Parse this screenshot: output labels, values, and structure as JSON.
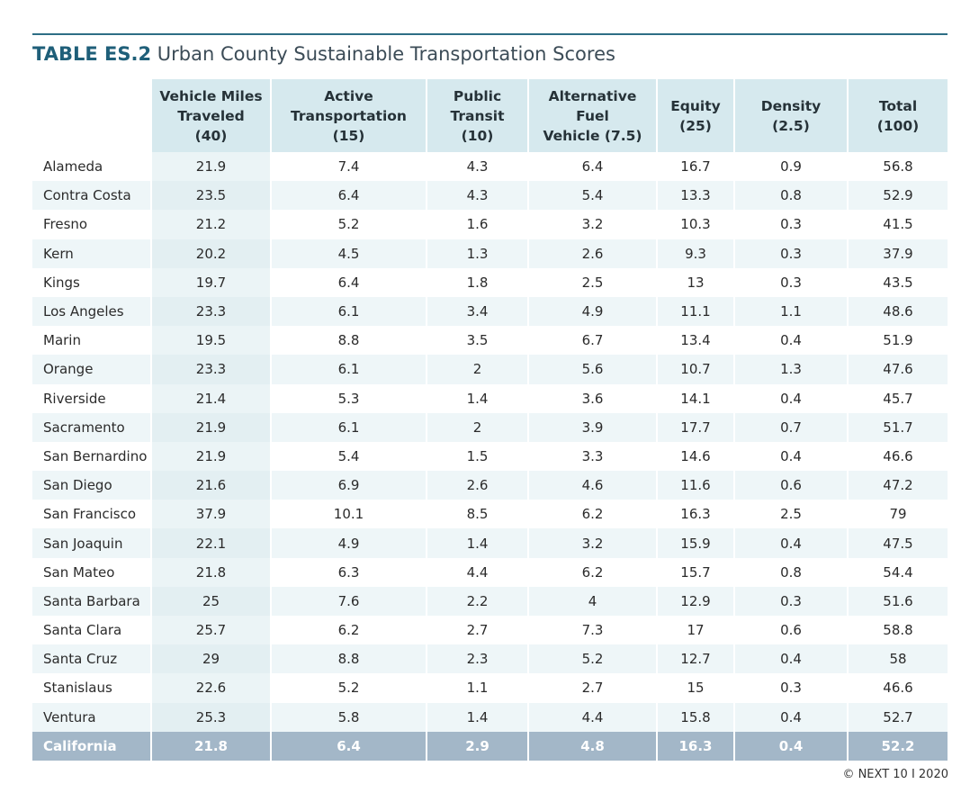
{
  "title": {
    "label": "TABLE ES.2",
    "text": "Urban County Sustainable Transportation Scores"
  },
  "table": {
    "headers": [
      [
        "Vehicle Miles",
        "Traveled",
        "(40)"
      ],
      [
        "Active",
        "Transportation",
        "(15)"
      ],
      [
        "Public",
        "Transit",
        "(10)"
      ],
      [
        "Alternative",
        "Fuel",
        "Vehicle (7.5)"
      ],
      [
        "Equity",
        "(25)"
      ],
      [
        "Density",
        "(2.5)"
      ],
      [
        "Total",
        "(100)"
      ]
    ],
    "rows": [
      {
        "county": "Alameda",
        "values": [
          "21.9",
          "7.4",
          "4.3",
          "6.4",
          "16.7",
          "0.9",
          "56.8"
        ]
      },
      {
        "county": "Contra Costa",
        "values": [
          "23.5",
          "6.4",
          "4.3",
          "5.4",
          "13.3",
          "0.8",
          "52.9"
        ]
      },
      {
        "county": "Fresno",
        "values": [
          "21.2",
          "5.2",
          "1.6",
          "3.2",
          "10.3",
          "0.3",
          "41.5"
        ]
      },
      {
        "county": "Kern",
        "values": [
          "20.2",
          "4.5",
          "1.3",
          "2.6",
          "9.3",
          "0.3",
          "37.9"
        ]
      },
      {
        "county": "Kings",
        "values": [
          "19.7",
          "6.4",
          "1.8",
          "2.5",
          "13",
          "0.3",
          "43.5"
        ]
      },
      {
        "county": "Los Angeles",
        "values": [
          "23.3",
          "6.1",
          "3.4",
          "4.9",
          "11.1",
          "1.1",
          "48.6"
        ]
      },
      {
        "county": "Marin",
        "values": [
          "19.5",
          "8.8",
          "3.5",
          "6.7",
          "13.4",
          "0.4",
          "51.9"
        ]
      },
      {
        "county": "Orange",
        "values": [
          "23.3",
          "6.1",
          "2",
          "5.6",
          "10.7",
          "1.3",
          "47.6"
        ]
      },
      {
        "county": "Riverside",
        "values": [
          "21.4",
          "5.3",
          "1.4",
          "3.6",
          "14.1",
          "0.4",
          "45.7"
        ]
      },
      {
        "county": "Sacramento",
        "values": [
          "21.9",
          "6.1",
          "2",
          "3.9",
          "17.7",
          "0.7",
          "51.7"
        ]
      },
      {
        "county": "San Bernardino",
        "values": [
          "21.9",
          "5.4",
          "1.5",
          "3.3",
          "14.6",
          "0.4",
          "46.6"
        ]
      },
      {
        "county": "San Diego",
        "values": [
          "21.6",
          "6.9",
          "2.6",
          "4.6",
          "11.6",
          "0.6",
          "47.2"
        ]
      },
      {
        "county": "San Francisco",
        "values": [
          "37.9",
          "10.1",
          "8.5",
          "6.2",
          "16.3",
          "2.5",
          "79"
        ]
      },
      {
        "county": "San Joaquin",
        "values": [
          "22.1",
          "4.9",
          "1.4",
          "3.2",
          "15.9",
          "0.4",
          "47.5"
        ]
      },
      {
        "county": "San Mateo",
        "values": [
          "21.8",
          "6.3",
          "4.4",
          "6.2",
          "15.7",
          "0.8",
          "54.4"
        ]
      },
      {
        "county": "Santa Barbara",
        "values": [
          "25",
          "7.6",
          "2.2",
          "4",
          "12.9",
          "0.3",
          "51.6"
        ]
      },
      {
        "county": "Santa Clara",
        "values": [
          "25.7",
          "6.2",
          "2.7",
          "7.3",
          "17",
          "0.6",
          "58.8"
        ]
      },
      {
        "county": "Santa Cruz",
        "values": [
          "29",
          "8.8",
          "2.3",
          "5.2",
          "12.7",
          "0.4",
          "58"
        ]
      },
      {
        "county": "Stanislaus",
        "values": [
          "22.6",
          "5.2",
          "1.1",
          "2.7",
          "15",
          "0.3",
          "46.6"
        ]
      },
      {
        "county": "Ventura",
        "values": [
          "25.3",
          "5.8",
          "1.4",
          "4.4",
          "15.8",
          "0.4",
          "52.7"
        ]
      }
    ],
    "total_row": {
      "county": "California",
      "values": [
        "21.8",
        "6.4",
        "2.9",
        "4.8",
        "16.3",
        "0.4",
        "52.2"
      ]
    }
  },
  "footer": "© NEXT 10 I 2020",
  "colors": {
    "title_accent": "#1f5f79",
    "header_bg": "#d6e9ee",
    "stripe_bg": "#eef6f8",
    "total_row_bg": "#a3b7c8",
    "rule": "#2d6e85"
  }
}
